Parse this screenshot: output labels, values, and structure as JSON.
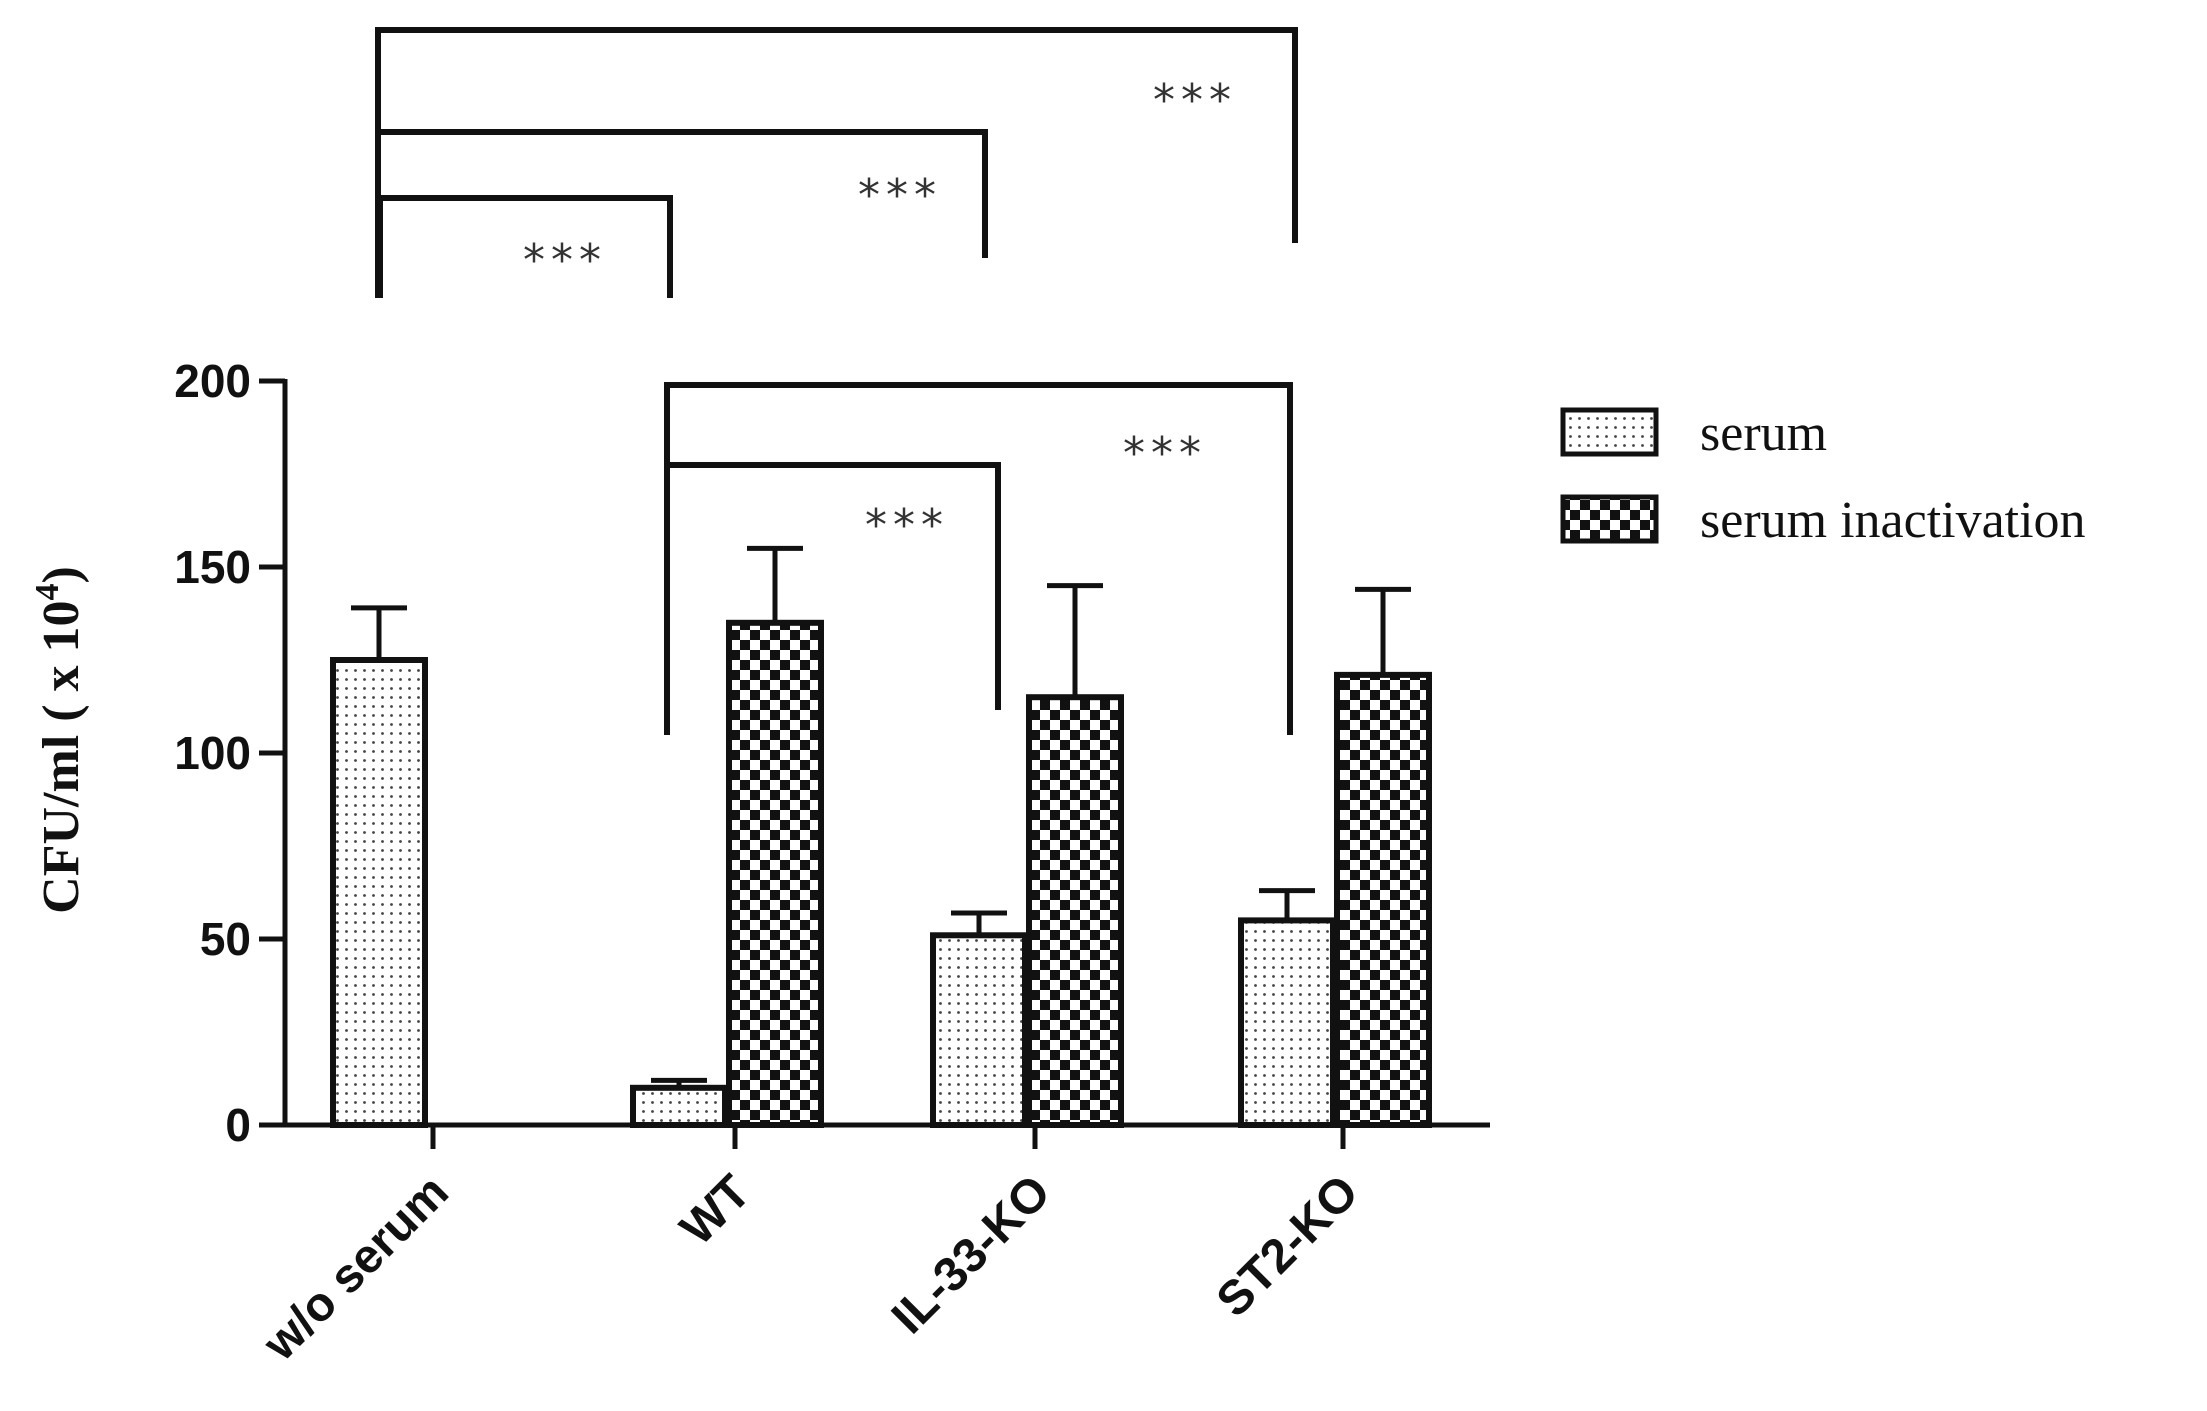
{
  "chart_data": {
    "type": "bar",
    "categories": [
      "w/o serum",
      "WT",
      "IL-33-KO",
      "ST2-KO"
    ],
    "series": [
      {
        "name": "serum",
        "values": [
          125,
          10,
          51,
          55
        ],
        "errors": [
          14,
          2,
          6,
          8
        ],
        "pattern": "dots"
      },
      {
        "name": "serum inactivation",
        "values": [
          null,
          135,
          115,
          121
        ],
        "errors": [
          null,
          20,
          30,
          23
        ],
        "pattern": "checker"
      }
    ],
    "ylabel_main": "CFU/ml ( x 10",
    "ylabel_exp": "4",
    "ylabel_close": ")",
    "ylim": [
      0,
      200
    ],
    "yticks": [
      "0",
      "50",
      "100",
      "150",
      "200"
    ],
    "legend_position": "right",
    "significance": [
      {
        "label": "***"
      },
      {
        "label": "***"
      },
      {
        "label": "***"
      },
      {
        "label": "***"
      },
      {
        "label": "***"
      }
    ],
    "colors": {
      "bar_fill": "#ffffff",
      "ink": "#111111",
      "pattern_ink": "#222222"
    }
  }
}
